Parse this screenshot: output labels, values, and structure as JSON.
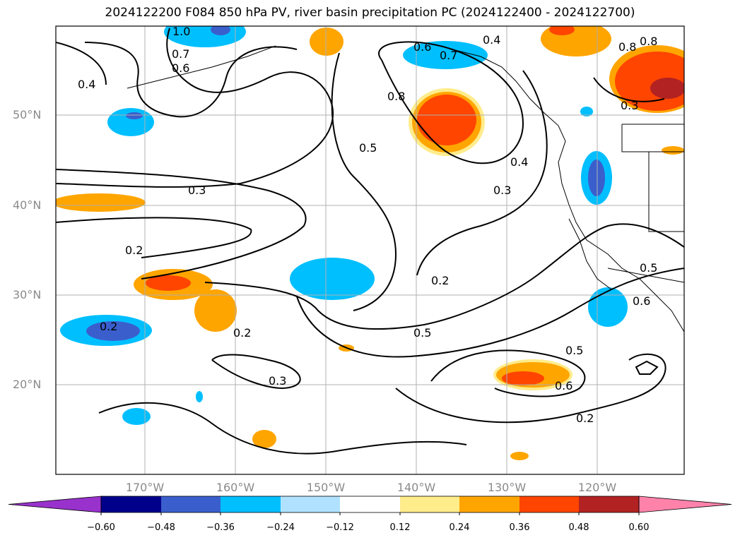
{
  "title": "2024122200 F084 850 hPa PV, river basin precipitation PC (2024122400 - 2024122700)",
  "map": {
    "latitude_labels": [
      "50°N",
      "40°N",
      "30°N",
      "20°N"
    ],
    "longitude_labels": [
      "170°W",
      "160°W",
      "150°W",
      "140°W",
      "130°W",
      "120°W"
    ],
    "contour_labels": [
      "1.0",
      "0.8",
      "0.7",
      "0.6",
      "0.4",
      "0.6",
      "0.7",
      "0.4",
      "0.8",
      "0.5",
      "0.3",
      "0.4",
      "0.3",
      "0.2",
      "0.2",
      "0.2",
      "0.5",
      "0.2",
      "0.3",
      "0.5",
      "0.6",
      "0.2",
      "0.5",
      "0.6",
      "0.8",
      "0.3"
    ]
  },
  "colorbar": {
    "tick_labels": [
      "−0.60",
      "−0.48",
      "−0.36",
      "−0.24",
      "−0.12",
      "0.12",
      "0.24",
      "0.36",
      "0.48",
      "0.60"
    ],
    "colors": [
      "#9932cc",
      "#00008b",
      "#3a5fcd",
      "#00bfff",
      "#b0e2ff",
      "#ffffff",
      "#ffec8b",
      "#ffa500",
      "#ff4500",
      "#b22222",
      "#ff82ab"
    ]
  }
}
